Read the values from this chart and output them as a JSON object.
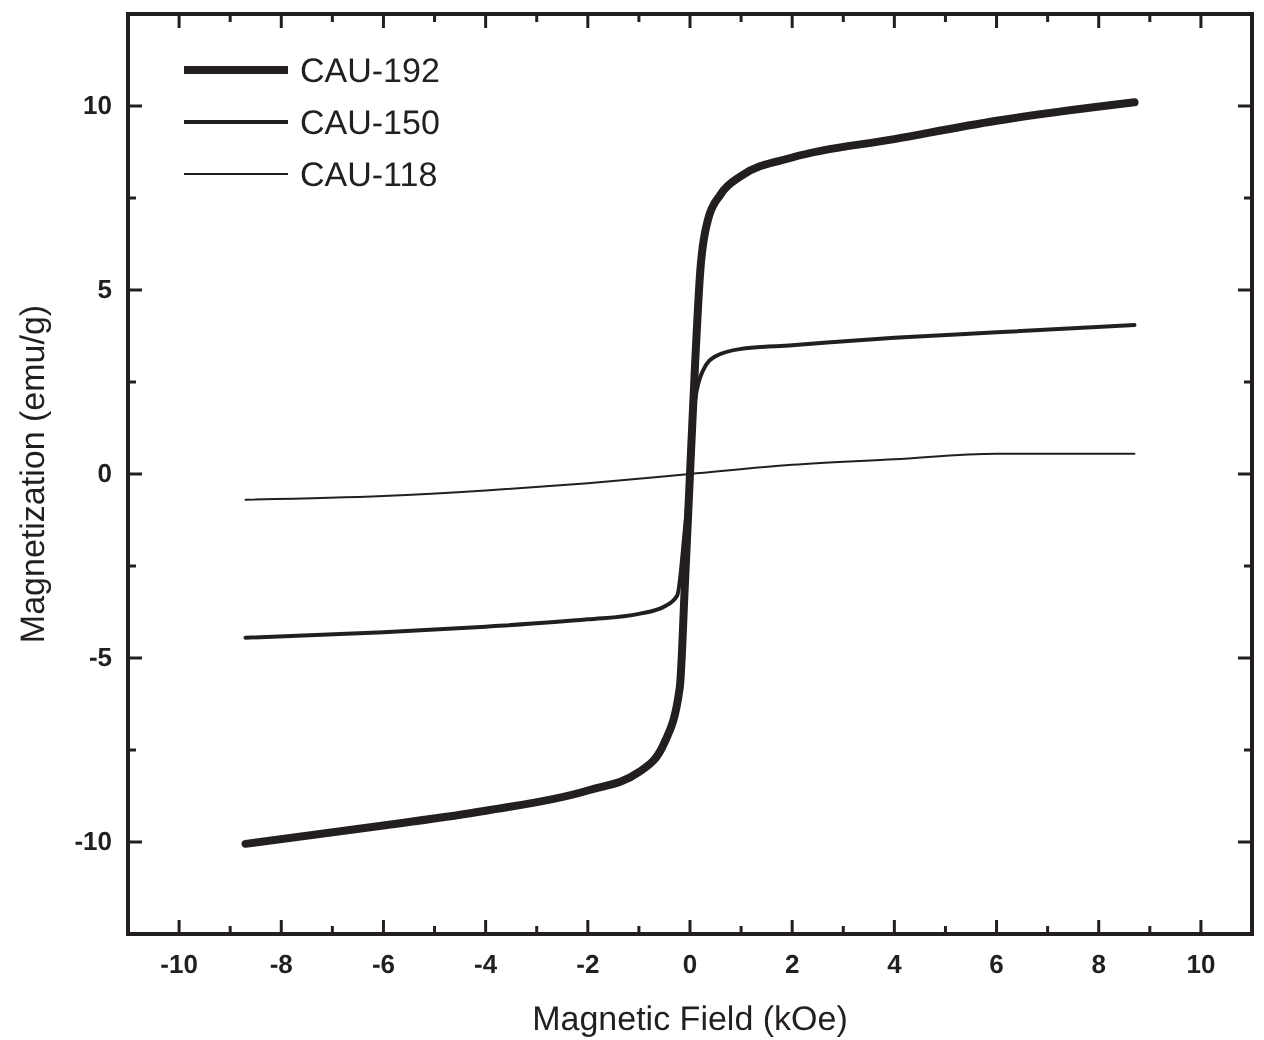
{
  "chart_data": {
    "type": "line",
    "xlabel": "Magnetic Field (kOe)",
    "ylabel": "Magnetization (emu/g)",
    "xlim": [
      -11,
      11
    ],
    "ylim": [
      -12.5,
      12.5
    ],
    "xticks": [
      -10,
      {
        "value": -9,
        "label": null
      },
      -8,
      {
        "value": -7,
        "label": null
      },
      -6,
      {
        "value": -5,
        "label": null
      },
      -4,
      {
        "value": -3,
        "label": null
      },
      -2,
      {
        "value": -1,
        "label": null
      },
      0,
      {
        "value": 1,
        "label": null
      },
      2,
      {
        "value": 3,
        "label": null
      },
      4,
      {
        "value": 5,
        "label": null
      },
      6,
      {
        "value": 7,
        "label": null
      },
      8,
      {
        "value": 9,
        "label": null
      },
      10
    ],
    "yticks": [
      {
        "value": -12.5,
        "label": null
      },
      -10,
      {
        "value": -7.5,
        "label": null
      },
      -5,
      {
        "value": -2.5,
        "label": null
      },
      0,
      {
        "value": 2.5,
        "label": null
      },
      5,
      {
        "value": 7.5,
        "label": null
      },
      10
    ],
    "legend": "top left",
    "grid": false,
    "marker": "none",
    "line_style": "solid",
    "series": [
      {
        "name": "CAU-192",
        "color": "#231f20",
        "x": [
          -8.7,
          -6,
          -4,
          -2,
          -1,
          -0.5,
          -0.2,
          -0.1,
          0,
          0.1,
          0.2,
          0.35,
          0.6,
          1,
          2,
          4,
          6,
          8.7
        ],
        "values": [
          -10.05,
          -9.55,
          -9.15,
          -8.6,
          -8.1,
          -7.3,
          -5.8,
          -3,
          0,
          3,
          5.5,
          6.9,
          7.6,
          8.1,
          8.6,
          9.1,
          9.6,
          10.1
        ]
      },
      {
        "name": "CAU-150",
        "color": "#231f20",
        "x": [
          -8.7,
          -6,
          -4,
          -2,
          -1,
          -0.5,
          -0.25,
          -0.1,
          0,
          0.1,
          0.25,
          0.5,
          1,
          2,
          4,
          6,
          8.7
        ],
        "values": [
          -4.45,
          -4.3,
          -4.15,
          -3.95,
          -3.8,
          -3.6,
          -3.3,
          -1.5,
          0,
          2,
          2.8,
          3.2,
          3.4,
          3.5,
          3.7,
          3.85,
          4.05
        ]
      },
      {
        "name": "CAU-118",
        "color": "#231f20",
        "x": [
          -8.7,
          -6,
          -4,
          -2,
          0,
          2,
          4,
          6,
          8.7
        ],
        "values": [
          -0.7,
          -0.6,
          -0.45,
          -0.25,
          0,
          0.25,
          0.4,
          0.55,
          0.55
        ]
      }
    ]
  }
}
